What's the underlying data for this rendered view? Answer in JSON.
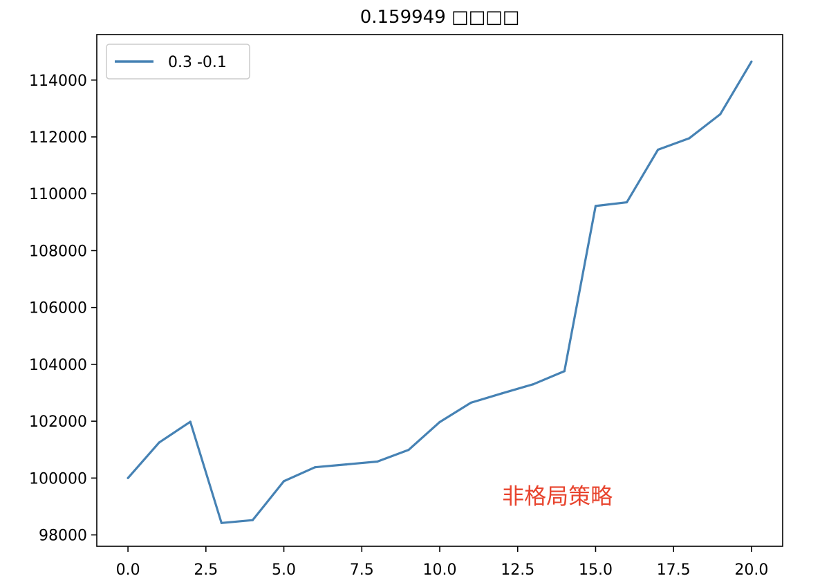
{
  "chart_data": {
    "type": "line",
    "title": "0.159949 □□□□",
    "xlabel": "",
    "ylabel": "",
    "xlim": [
      -1,
      21
    ],
    "ylim": [
      97600,
      115600
    ],
    "xticks": [
      0.0,
      2.5,
      5.0,
      7.5,
      10.0,
      12.5,
      15.0,
      17.5,
      20.0
    ],
    "xtick_labels": [
      "0.0",
      "2.5",
      "5.0",
      "7.5",
      "10.0",
      "12.5",
      "15.0",
      "17.5",
      "20.0"
    ],
    "yticks": [
      98000,
      100000,
      102000,
      104000,
      106000,
      108000,
      110000,
      112000,
      114000
    ],
    "ytick_labels": [
      "98000",
      "100000",
      "102000",
      "104000",
      "106000",
      "108000",
      "110000",
      "112000",
      "114000"
    ],
    "grid": false,
    "legend_position": "top-left",
    "series": [
      {
        "name": "0.3 -0.1",
        "color": "#4682b4",
        "x": [
          0,
          1,
          2,
          3,
          4,
          5,
          6,
          7,
          8,
          9,
          10,
          11,
          12,
          13,
          14,
          15,
          16,
          17,
          18,
          19,
          20
        ],
        "values": [
          100000,
          101250,
          101980,
          98420,
          98520,
          99890,
          100380,
          100480,
          100580,
          100990,
          101970,
          102650,
          102980,
          103300,
          103760,
          109570,
          109700,
          111550,
          111950,
          112800,
          114650
        ]
      }
    ],
    "annotation": {
      "text": "非格局策略",
      "x": 12.0,
      "y": 99100,
      "color": "#e8442e"
    }
  }
}
